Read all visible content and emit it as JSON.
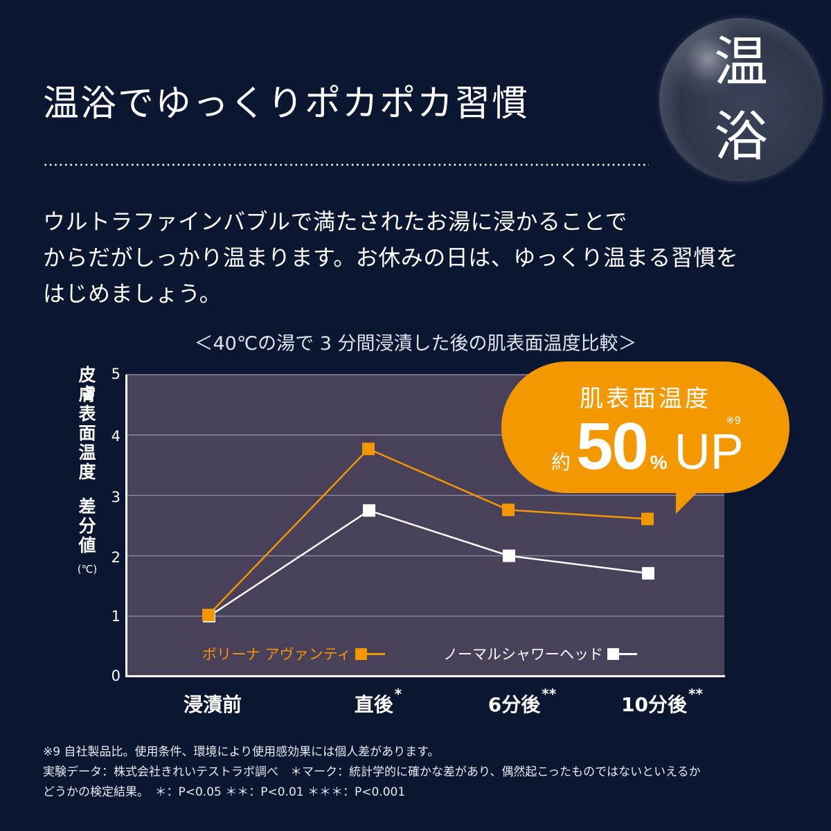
{
  "header": {
    "title": "温浴でゆっくりポカポカ習慣",
    "badge_line1": "温",
    "badge_line2": "浴"
  },
  "lead": {
    "lines": [
      "ウルトラファインバブルで満たされたお湯に浸かることで",
      "からだがしっかり温まります。お休みの日は、ゆっくり温まる習慣を",
      "はじめましょう。"
    ]
  },
  "chart_caption": "＜40℃の湯で 3 分間浸漬した後の肌表面温度比較＞",
  "callout": {
    "heading": "肌表面温度",
    "approx": "約",
    "value": "50",
    "unit": "%",
    "suffix": "UP",
    "note": "※9",
    "color": "#f39800"
  },
  "colors": {
    "background": "#0b1631",
    "plot_background": "#49405a",
    "series_avanti": "#f39800",
    "series_normal": "#ffffff",
    "gridline": "#8d8699"
  },
  "chart_data": {
    "type": "line",
    "title": "＜40℃の湯で 3 分間浸漬した後の肌表面温度比較＞",
    "xlabel": "",
    "ylabel": "皮膚表面温度 差分値 (℃)",
    "ylabel_parts": [
      "皮",
      "膚",
      "表",
      "面",
      "温",
      "度",
      "",
      "差",
      "分",
      "値"
    ],
    "ylabel_unit": "(℃)",
    "categories": [
      "浸漬前",
      "直後",
      "6分後",
      "10分後"
    ],
    "category_marks": [
      "",
      "*",
      "**",
      "**"
    ],
    "ylim": [
      0,
      5
    ],
    "yticks": [
      "5",
      "4",
      "3",
      "2",
      "1",
      "0"
    ],
    "grid": true,
    "legend_position": "inside-bottom",
    "series": [
      {
        "name": "ボリーナ アヴァンティ",
        "marker": "square",
        "color": "#f39800",
        "values": [
          1.02,
          3.77,
          2.76,
          2.61
        ]
      },
      {
        "name": "ノーマルシャワーヘッド",
        "marker": "square",
        "color": "#ffffff",
        "values": [
          1.0,
          2.75,
          2.0,
          1.71
        ]
      }
    ]
  },
  "footnotes": [
    "※9 自社製品比。使用条件、環境により使用感効果には個人差があります。",
    "実験データ：株式会社きれいテストラボ調べ　＊マーク：統計学的に確かな差があり、偶然起こったものではないといえるか",
    "どうかの検定結果。　＊：P<0.05 ＊＊：P<0.01 ＊＊＊：P<0.001"
  ]
}
